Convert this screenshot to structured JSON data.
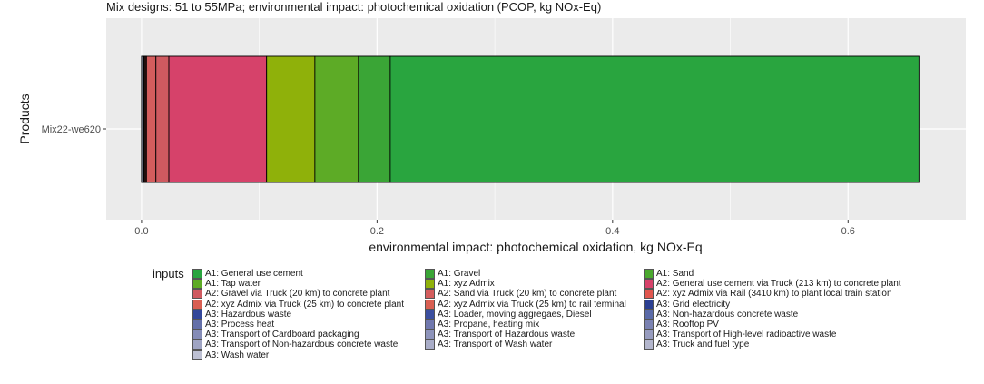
{
  "chart_data": {
    "type": "bar",
    "orientation": "horizontal",
    "stacked": true,
    "title": "Mix designs: 51 to 55MPa; environmental impact: photochemical oxidation (PCOP, kg NOx-Eq)",
    "xlabel": "environmental impact: photochemical oxidation, kg NOx-Eq",
    "ylabel": "Products",
    "categories": [
      "Mix22-we620"
    ],
    "xlim": [
      -0.03,
      0.7
    ],
    "x_ticks": [
      0.0,
      0.2,
      0.4,
      0.6
    ],
    "x_tick_labels": [
      "0.0",
      "0.2",
      "0.4",
      "0.6"
    ],
    "grid": true,
    "background": "#ebebeb",
    "legend_title": "inputs",
    "legend_position": "bottom",
    "series": [
      {
        "name": "A3: Transport of Non-hazardous concrete waste",
        "values": [
          0.002
        ],
        "color": "#9fa4bf"
      },
      {
        "name": "A2: xyz Admix via Truck (25 km) to rail terminal",
        "values": [
          0.0006
        ],
        "color": "#d95f52"
      },
      {
        "name": "A2: xyz Admix via Truck (25 km) to concrete plant",
        "values": [
          0.0008
        ],
        "color": "#d95f52"
      },
      {
        "name": "A2: xyz Admix via Rail (3410 km) to plant local train station",
        "values": [
          0.0008
        ],
        "color": "#e0564e"
      },
      {
        "name": "A2: Sand via Truck (20 km) to concrete plant",
        "values": [
          0.008
        ],
        "color": "#d45d5d"
      },
      {
        "name": "A2: Gravel via Truck (20 km) to concrete plant",
        "values": [
          0.011
        ],
        "color": "#cf5a60"
      },
      {
        "name": "A2: General use cement via Truck (213 km) to concrete plant",
        "values": [
          0.083
        ],
        "color": "#d6426a"
      },
      {
        "name": "A1: xyz Admix",
        "values": [
          0.041
        ],
        "color": "#8fb10a"
      },
      {
        "name": "A1: Tap water",
        "values": [
          0.037
        ],
        "color": "#5dab26"
      },
      {
        "name": "A1: Sand",
        "values": [
          0.027
        ],
        "color": "#3aa536"
      },
      {
        "name": "A1: General use cement",
        "values": [
          0.449
        ],
        "color": "#29a53f"
      }
    ]
  },
  "legend": [
    {
      "label": "A1: General use cement",
      "color": "#29a53f"
    },
    {
      "label": "A1: Gravel",
      "color": "#3aa536"
    },
    {
      "label": "A1: Sand",
      "color": "#4aa82e"
    },
    {
      "label": "A1: Tap water",
      "color": "#5dab26"
    },
    {
      "label": "A1: xyz Admix",
      "color": "#8fb10a"
    },
    {
      "label": "A2: General use cement via Truck (213 km) to concrete plant",
      "color": "#d6426a"
    },
    {
      "label": "A2: Gravel via Truck (20 km) to concrete plant",
      "color": "#cf5a60"
    },
    {
      "label": "A2: Sand via Truck (20 km) to concrete plant",
      "color": "#d45d5d"
    },
    {
      "label": "A2: xyz Admix via Rail (3410 km) to plant local train station",
      "color": "#e0564e"
    },
    {
      "label": "A2: xyz Admix via Truck (25 km) to concrete plant",
      "color": "#d95f52"
    },
    {
      "label": "A2: xyz Admix via Truck (25 km) to rail terminal",
      "color": "#d95f52"
    },
    {
      "label": "A3: Grid electricity",
      "color": "#2b3f92"
    },
    {
      "label": "A3: Hazardous waste",
      "color": "#33479a"
    },
    {
      "label": "A3: Loader, moving aggregaes, Diesel",
      "color": "#3b4f9f"
    },
    {
      "label": "A3: Non-hazardous concrete waste",
      "color": "#5a6aa8"
    },
    {
      "label": "A3: Process heat",
      "color": "#6470a9"
    },
    {
      "label": "A3: Propane, heating mix",
      "color": "#7078ae"
    },
    {
      "label": "A3: Rooftop PV",
      "color": "#7a82b2"
    },
    {
      "label": "A3: Transport of Cardboard packaging",
      "color": "#858cb7"
    },
    {
      "label": "A3: Transport of Hazardous waste",
      "color": "#8e94bb"
    },
    {
      "label": "A3: Transport of High-level radioactive waste",
      "color": "#979cbf"
    },
    {
      "label": "A3: Transport of Non-hazardous concrete waste",
      "color": "#9fa4c3"
    },
    {
      "label": "A3: Transport of Wash water",
      "color": "#a9adc8"
    },
    {
      "label": "A3: Truck and fuel type",
      "color": "#b3b6cd"
    },
    {
      "label": "A3: Wash water",
      "color": "#bdc0d3"
    }
  ]
}
